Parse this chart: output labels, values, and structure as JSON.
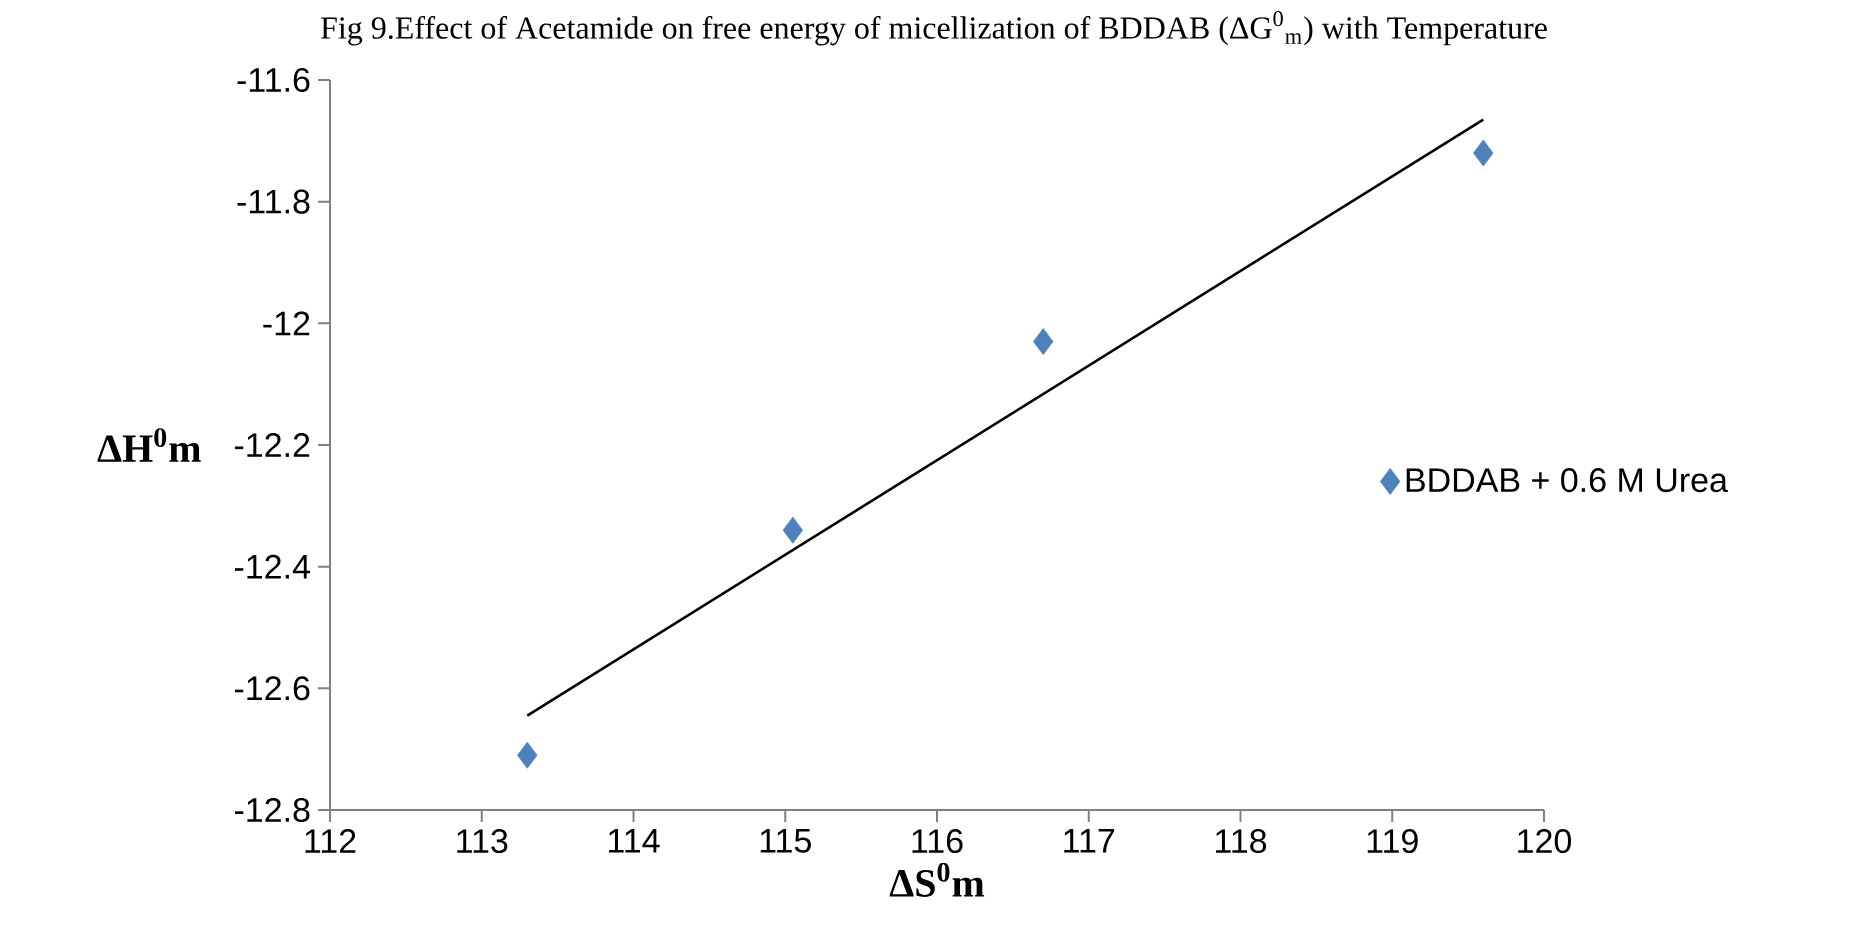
{
  "chart_data": {
    "type": "scatter",
    "title": "Fig 9.Effect of Acetamide on free energy of micellization of BDDAB (ΔG$^{0}$$_{m}$) with Temperature",
    "xlabel": "ΔS$^{0}$m",
    "ylabel": "ΔH$^{0}$m",
    "xlim": [
      112,
      120
    ],
    "xticks": [
      112,
      113,
      114,
      115,
      116,
      117,
      118,
      119,
      120
    ],
    "ylim": [
      -12.8,
      -11.6
    ],
    "yticks": [
      -12.8,
      -12.6,
      -12.4,
      -12.2,
      -12,
      -11.8,
      -11.6
    ],
    "grid": false,
    "legend": "right",
    "marker": "diamond",
    "series": [
      {
        "name": "BDDAB + 0.6 M Urea",
        "color": "#4f81bd",
        "x": [
          113.3,
          115.05,
          116.7,
          119.6
        ],
        "values": [
          -12.71,
          -12.34,
          -12.03,
          -11.72
        ]
      },
      {
        "type": "line",
        "color": "#000000",
        "marker": "none",
        "line_style": "solid",
        "x": [
          113.3,
          119.6
        ],
        "values": [
          -12.645,
          -11.665
        ]
      }
    ]
  }
}
